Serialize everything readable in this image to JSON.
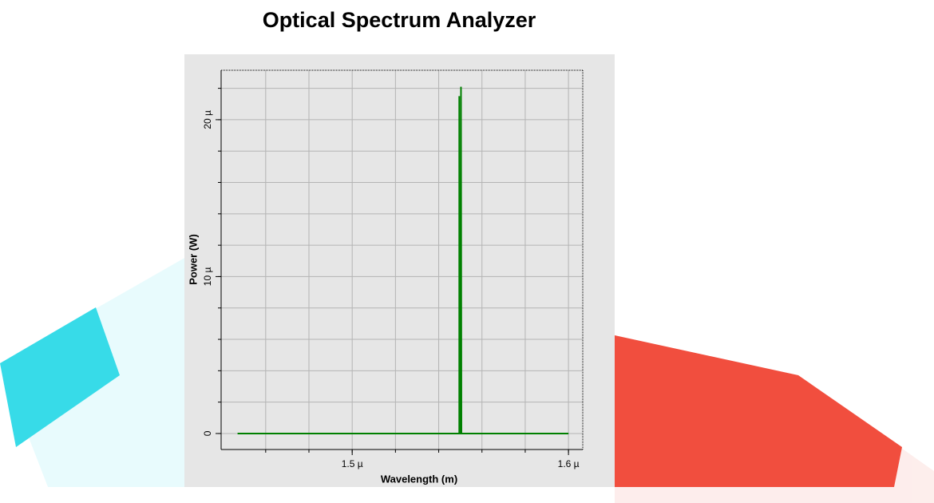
{
  "chart_data": {
    "type": "line",
    "title": "Optical Spectrum Analyzer",
    "x_label": "Wavelength (m)",
    "y_label": "Power (W)",
    "xlim": [
      1.4394e-06,
      1.6066e-06
    ],
    "ylim": [
      -1.02e-06,
      2.315e-05
    ],
    "xticks": [
      {
        "value": 1.5e-06,
        "label": "1.5 µ"
      },
      {
        "value": 1.6e-06,
        "label": "1.6 µ"
      }
    ],
    "yticks": [
      0,
      {
        "value": 1e-05,
        "label": "10 µ"
      },
      {
        "value": 2e-05,
        "label": "20 µ"
      }
    ],
    "xgrid": [
      1.46e-06,
      1.48e-06,
      1.5e-06,
      1.52e-06,
      1.54e-06,
      1.56e-06,
      1.58e-06,
      1.6e-06
    ],
    "ygrid": [
      0,
      2e-06,
      4e-06,
      6e-06,
      8e-06,
      1e-05,
      1.2e-05,
      1.4e-05,
      1.6e-05,
      1.8e-05,
      2e-05,
      2.2e-05
    ],
    "grid": true,
    "series": [
      {
        "color": "#008000",
        "x": [
          1.447e-06,
          1.5495e-06,
          1.5495e-06,
          1.5497e-06,
          1.5503e-06,
          1.5503e-06,
          1.5505e-06,
          1.6e-06
        ],
        "values": [
          0,
          0,
          2.15e-05,
          0,
          0,
          2.21e-05,
          0,
          0
        ]
      }
    ]
  }
}
